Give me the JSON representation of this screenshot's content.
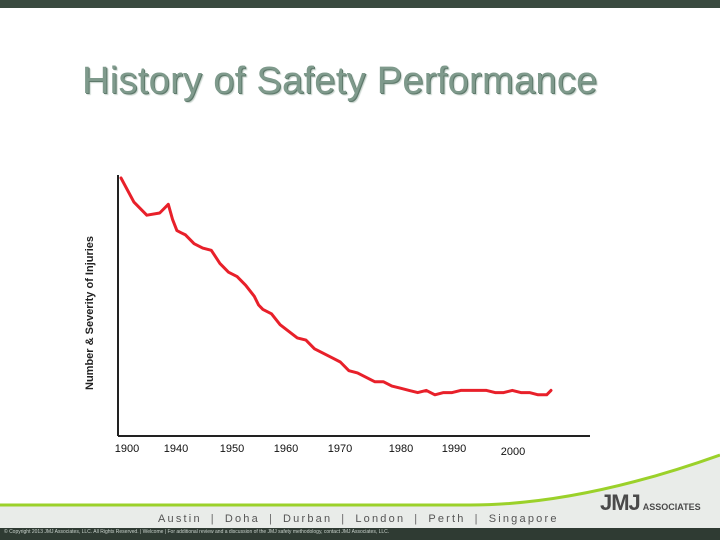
{
  "slide": {
    "title": "History of Safety Performance",
    "cities": [
      "Austin",
      "Doha",
      "Durban",
      "London",
      "Perth",
      "Singapore"
    ],
    "logo": {
      "main": "JMJ",
      "sub": "ASSOCIATES"
    },
    "copyright": "© Copyright 2013 JMJ Associates, LLC. All Rights Reserved. | Welcome | For additional review and a discussion of the JMJ safety methodology, contact JMJ Associates, LLC.",
    "colors": {
      "line": "#e8202a",
      "title": "#7f9a8c",
      "bar": "#2f3b33",
      "swoosh": "#9bd12a"
    }
  },
  "chart_data": {
    "type": "line",
    "title": "History of Safety Performance",
    "xlabel": "",
    "ylabel": "Number & Severity of Injuries",
    "tick_labels": [
      "1900",
      "1940",
      "1950",
      "1960",
      "1970",
      "1980",
      "1990",
      "2000"
    ],
    "y_tick_labels": false,
    "grid": false,
    "series": [
      {
        "color": "#e8202a",
        "x": [
          0,
          3,
          6,
          9,
          11,
          12,
          13,
          14,
          15,
          17,
          19,
          21,
          23,
          25,
          27,
          29,
          31,
          32,
          33,
          35,
          37,
          39,
          41,
          43,
          45,
          47,
          49,
          51,
          53,
          55,
          57,
          59,
          61,
          63,
          65,
          67,
          69,
          71,
          73,
          75,
          77,
          79,
          81,
          83,
          85,
          87,
          89,
          91,
          93,
          95,
          97,
          99,
          100
        ],
        "y": [
          100,
          89,
          83,
          84,
          88,
          81,
          76,
          75,
          74,
          70,
          68,
          67,
          61,
          57,
          55,
          51,
          46,
          42,
          40,
          38,
          33,
          30,
          27,
          26,
          22,
          20,
          18,
          16,
          12,
          11,
          9,
          7,
          7,
          5,
          4,
          3,
          2,
          3,
          1,
          2,
          2,
          3,
          3,
          3,
          3,
          2,
          2,
          3,
          2,
          2,
          1,
          1,
          3
        ]
      }
    ]
  }
}
